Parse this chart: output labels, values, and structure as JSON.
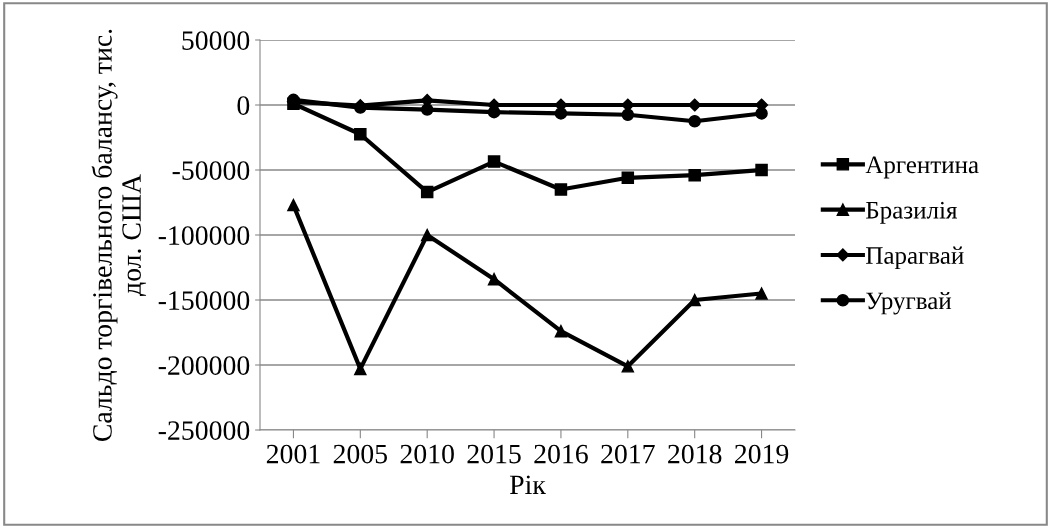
{
  "chart_data": {
    "type": "line",
    "xlabel": "Рік",
    "ylabel": "Сальдо торгівельного балансу, тис. дол. США",
    "categories": [
      "2001",
      "2005",
      "2010",
      "2015",
      "2016",
      "2017",
      "2018",
      "2019"
    ],
    "series": [
      {
        "name": "Аргентина",
        "color": "#000000",
        "marker": "square",
        "values": [
          1000,
          -22500,
          -67000,
          -43500,
          -65000,
          -56000,
          -54000,
          -50000
        ]
      },
      {
        "name": "Бразилія",
        "color": "#000000",
        "marker": "triangle",
        "values": [
          -77000,
          -203000,
          -100000,
          -134000,
          -174000,
          -201000,
          -150000,
          -145000
        ]
      },
      {
        "name": "Парагвай",
        "color": "#000000",
        "marker": "diamond",
        "values": [
          2500,
          -500,
          3500,
          0,
          0,
          0,
          0,
          0
        ]
      },
      {
        "name": "Уругвай",
        "color": "#000000",
        "marker": "circle",
        "values": [
          4000,
          -2000,
          -3500,
          -5500,
          -6500,
          -7500,
          -12500,
          -6500
        ]
      }
    ],
    "ylim": [
      -250000,
      50000
    ],
    "yticks": [
      -250000,
      -200000,
      -150000,
      -100000,
      -50000,
      0,
      50000
    ],
    "grid": "y",
    "legend": "right",
    "line_style": "solid"
  }
}
